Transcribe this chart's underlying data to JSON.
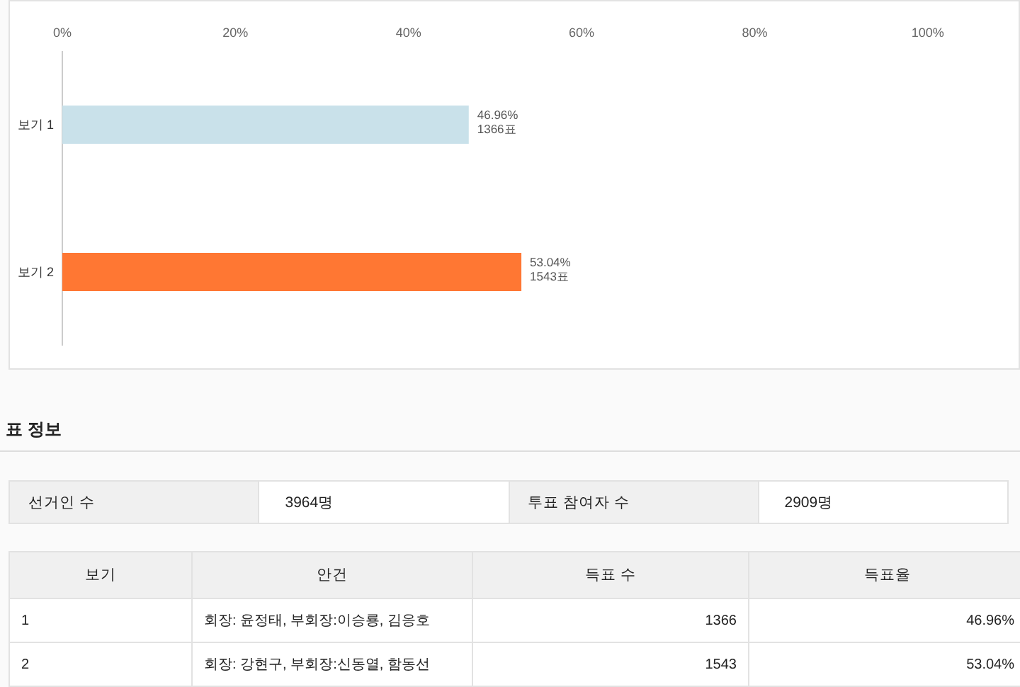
{
  "chart_data": [
    {
      "type": "bar",
      "orientation": "horizontal",
      "categories": [
        "보기 1",
        "보기 2"
      ],
      "values": [
        46.96,
        53.04
      ],
      "colors": [
        "#c9e1ea",
        "#ff7733"
      ],
      "value_labels": [
        "46.96%\n1366표",
        "53.04%\n1543표"
      ],
      "xlim": [
        0,
        110
      ],
      "xticks": [
        {
          "value": 0,
          "label": "0%"
        },
        {
          "value": 20,
          "label": "20%"
        },
        {
          "value": 40,
          "label": "40%"
        },
        {
          "value": 60,
          "label": "60%"
        },
        {
          "value": 80,
          "label": "80%"
        },
        {
          "value": 100,
          "label": "100%"
        }
      ],
      "grid": false
    },
    {
      "type": "other",
      "title": "표 정보",
      "annotations": [
        "선거인 수",
        "3964명",
        "투표 참여자 수",
        "2909명"
      ]
    },
    {
      "type": "other",
      "categories": [
        "보기",
        "안건",
        "득표 수",
        "득표율"
      ],
      "cell_labels": [
        [
          "1",
          "회장: 윤정태, 부회장:이승룡, 김응호",
          "1366",
          "46.96%"
        ],
        [
          "2",
          "회장: 강현구, 부회장:신동열, 함동선",
          "1543",
          "53.04%"
        ]
      ]
    }
  ]
}
